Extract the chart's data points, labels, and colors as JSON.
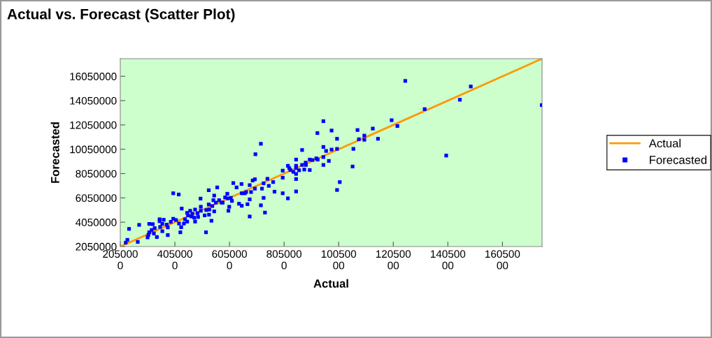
{
  "chart_data": {
    "type": "scatter",
    "title": "Actual vs. Forecast (Scatter Plot)",
    "xlabel": "Actual",
    "ylabel": "Forecasted",
    "xlim": [
      2050000,
      17500000
    ],
    "ylim": [
      2050000,
      17500000
    ],
    "xticks": [
      2050000,
      4050000,
      6050000,
      8050000,
      10050000,
      12050000,
      14050000,
      16050000
    ],
    "yticks": [
      2050000,
      4050000,
      6050000,
      8050000,
      10050000,
      12050000,
      14050000,
      16050000
    ],
    "grid": false,
    "legend": "right",
    "series": [
      {
        "name": "Actual",
        "type": "line",
        "color": "#ff9900",
        "marker": "none",
        "line_style": "solid",
        "x": [
          2050000,
          17500000
        ],
        "values": [
          2050000,
          17500000
        ]
      },
      {
        "name": "Forecasted",
        "color": "#0000ff",
        "marker": "square",
        "x": [
          2250000,
          2310000,
          2370000,
          2690000,
          2740000,
          3050000,
          3080000,
          3110000,
          3110000,
          3200000,
          3240000,
          3310000,
          3280000,
          3390000,
          3490000,
          3490000,
          3510000,
          3590000,
          3640000,
          3590000,
          3750000,
          3790000,
          3790000,
          3900000,
          3990000,
          3990000,
          4090000,
          4190000,
          4200000,
          4250000,
          4280000,
          4300000,
          4380000,
          4420000,
          4500000,
          4500000,
          4530000,
          4610000,
          4650000,
          4690000,
          4760000,
          4790000,
          4790000,
          4880000,
          4900000,
          4990000,
          5000000,
          5000000,
          5140000,
          5190000,
          5200000,
          5290000,
          5290000,
          5300000,
          5310000,
          5390000,
          5420000,
          5460000,
          5490000,
          5490000,
          5550000,
          5600000,
          5670000,
          5760000,
          5800000,
          5890000,
          5970000,
          5990000,
          6010000,
          6040000,
          6100000,
          6140000,
          6190000,
          6310000,
          6400000,
          6490000,
          6500000,
          6500000,
          6610000,
          6660000,
          6710000,
          6790000,
          6790000,
          6790000,
          6840000,
          6900000,
          6980000,
          6980000,
          7000000,
          7200000,
          7200000,
          7240000,
          7300000,
          7300000,
          7350000,
          7440000,
          7490000,
          7650000,
          7700000,
          8000000,
          8000000,
          8000000,
          8190000,
          8190000,
          8240000,
          8280000,
          8390000,
          8490000,
          8490000,
          8490000,
          8490000,
          8490000,
          8490000,
          8600000,
          8710000,
          8710000,
          8790000,
          8840000,
          8850000,
          8990000,
          8990000,
          9090000,
          9230000,
          9270000,
          9280000,
          9490000,
          9490000,
          9490000,
          9490000,
          9590000,
          9690000,
          9790000,
          9790000,
          9990000,
          9990000,
          9990000,
          10090000,
          10560000,
          10590000,
          10740000,
          10790000,
          10990000,
          10990000,
          11300000,
          11490000,
          11990000,
          12200000,
          12490000,
          13200000,
          13990000,
          14490000,
          14890000,
          17490000
        ],
        "values": [
          2370000,
          2600000,
          3500000,
          2430000,
          3830000,
          2800000,
          3010000,
          3220000,
          3910000,
          3410000,
          3890000,
          3560000,
          3120000,
          2830000,
          4290000,
          4130000,
          3660000,
          3310000,
          4250000,
          3910000,
          3850000,
          3620000,
          2990000,
          4080000,
          6430000,
          4330000,
          4230000,
          6330000,
          3940000,
          3220000,
          3640000,
          5170000,
          3940000,
          4290000,
          4100000,
          4820000,
          4610000,
          4990000,
          4520000,
          4750000,
          4420000,
          4100000,
          5090000,
          4790000,
          4480000,
          5990000,
          5320000,
          4990000,
          4610000,
          3220000,
          5050000,
          6680000,
          5510000,
          4670000,
          5090000,
          4170000,
          5380000,
          5860000,
          6240000,
          4940000,
          5660000,
          6910000,
          5860000,
          5660000,
          5660000,
          6090000,
          6390000,
          6010000,
          4990000,
          5320000,
          6050000,
          5800000,
          7270000,
          6910000,
          5570000,
          7190000,
          6430000,
          5400000,
          6430000,
          6530000,
          5530000,
          7100000,
          5930000,
          4520000,
          6530000,
          7480000,
          7580000,
          6810000,
          9640000,
          10500000,
          5440000,
          6810000,
          7250000,
          6050000,
          4840000,
          7620000,
          7040000,
          7350000,
          6560000,
          8290000,
          7710000,
          6430000,
          8690000,
          6010000,
          8500000,
          8340000,
          8190000,
          9200000,
          8690000,
          8500000,
          8020000,
          7600000,
          6580000,
          8320000,
          9990000,
          8760000,
          8380000,
          8950000,
          8760000,
          9200000,
          8340000,
          9160000,
          9300000,
          11380000,
          9200000,
          12360000,
          10240000,
          9410000,
          8760000,
          9910000,
          9090000,
          11590000,
          10020000,
          10910000,
          10080000,
          6700000,
          7350000,
          8630000,
          10080000,
          11630000,
          10870000,
          11170000,
          10830000,
          11750000,
          10910000,
          12440000,
          11960000,
          15670000,
          13350000,
          9530000,
          14120000,
          15210000,
          13680000
        ]
      }
    ]
  }
}
